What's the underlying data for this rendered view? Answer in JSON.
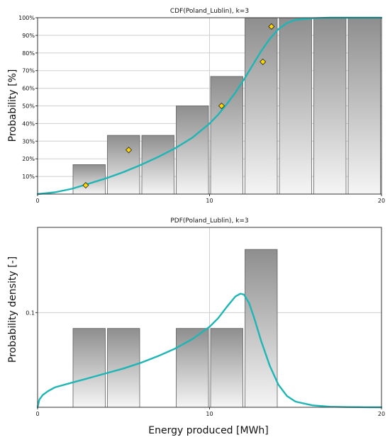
{
  "chart_data": [
    {
      "type": "bar",
      "title": "CDF(Poland_Lublin), k=3",
      "ylabel": "Probability [%]",
      "xlabel": "",
      "xlim": [
        0,
        20
      ],
      "ylim": [
        0,
        100
      ],
      "grid": true,
      "x_ticks": [
        "0",
        "10",
        "20"
      ],
      "y_ticks": [
        "10%",
        "20%",
        "30%",
        "40%",
        "50%",
        "60%",
        "70%",
        "80%",
        "90%",
        "100%"
      ],
      "bars": [
        {
          "x0": 2,
          "x1": 4,
          "value": 16.7
        },
        {
          "x0": 4,
          "x1": 6,
          "value": 33.3
        },
        {
          "x0": 6,
          "x1": 8,
          "value": 33.3
        },
        {
          "x0": 8,
          "x1": 10,
          "value": 50
        },
        {
          "x0": 10,
          "x1": 12,
          "value": 66.7
        },
        {
          "x0": 12,
          "x1": 14,
          "value": 100
        },
        {
          "x0": 14,
          "x1": 16,
          "value": 100
        },
        {
          "x0": 16,
          "x1": 18,
          "value": 100
        },
        {
          "x0": 18,
          "x1": 20,
          "value": 100
        }
      ],
      "points": [
        {
          "x": 2.8,
          "y": 5
        },
        {
          "x": 5.3,
          "y": 25
        },
        {
          "x": 10.7,
          "y": 50
        },
        {
          "x": 13.1,
          "y": 75
        },
        {
          "x": 13.6,
          "y": 95
        }
      ],
      "curve": {
        "x": [
          0,
          1,
          2,
          3,
          4,
          5,
          6,
          7,
          8,
          9,
          10,
          10.5,
          11,
          11.5,
          12,
          12.5,
          13,
          13.5,
          14,
          14.5,
          15,
          16,
          17,
          18,
          19,
          20
        ],
        "y": [
          0,
          1,
          3,
          6,
          9,
          12.5,
          16.5,
          21,
          26,
          32,
          40,
          45,
          51,
          57.5,
          65,
          73,
          81,
          88,
          93.5,
          97,
          98.8,
          99.7,
          100,
          100,
          100,
          100
        ]
      },
      "colors": {
        "bar_top": "#8e8e8e",
        "bar_bottom": "#f5f5f5",
        "curve": "#1fb5b5",
        "point": "#ffd700",
        "grid": "#cfcfcf"
      }
    },
    {
      "type": "bar",
      "title": "PDF(Poland_Lublin), k=3",
      "ylabel": "Probability density [-]",
      "xlabel": "Energy produced [MWh]",
      "xlim": [
        0,
        20
      ],
      "ylim": [
        0,
        0.19
      ],
      "grid": true,
      "x_ticks": [
        "0",
        "10",
        "20"
      ],
      "y_ticks": [
        "0.1"
      ],
      "bars": [
        {
          "x0": 2,
          "x1": 4,
          "value": 0.0833
        },
        {
          "x0": 4,
          "x1": 6,
          "value": 0.0833
        },
        {
          "x0": 8,
          "x1": 10,
          "value": 0.0833
        },
        {
          "x0": 10,
          "x1": 12,
          "value": 0.0833
        },
        {
          "x0": 12,
          "x1": 14,
          "value": 0.1667
        }
      ],
      "curve": {
        "x": [
          0,
          0.1,
          0.3,
          0.6,
          1,
          2,
          3,
          4,
          5,
          6,
          7,
          8,
          9,
          10,
          10.5,
          11,
          11.5,
          11.8,
          12,
          12.3,
          12.6,
          13,
          13.5,
          14,
          14.5,
          15,
          16,
          17,
          18,
          19,
          20
        ],
        "y": [
          0,
          0.008,
          0.013,
          0.017,
          0.021,
          0.026,
          0.031,
          0.036,
          0.041,
          0.047,
          0.054,
          0.062,
          0.072,
          0.085,
          0.094,
          0.106,
          0.117,
          0.12,
          0.119,
          0.11,
          0.094,
          0.07,
          0.044,
          0.024,
          0.012,
          0.006,
          0.002,
          0.0006,
          0.0002,
          0.0001,
          0
        ]
      },
      "colors": {
        "bar_top": "#8e8e8e",
        "bar_bottom": "#f5f5f5",
        "curve": "#1fb5b5",
        "grid": "#cfcfcf"
      }
    }
  ]
}
